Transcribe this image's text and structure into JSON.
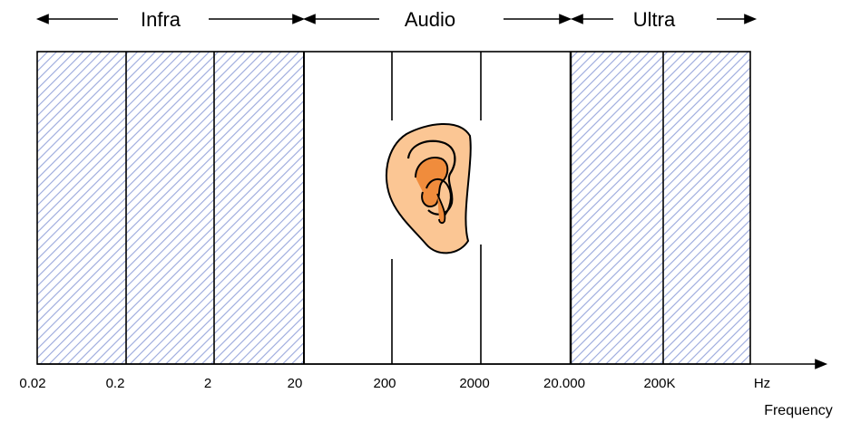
{
  "bands": [
    {
      "id": "infra",
      "label": "Infra",
      "hatched": true
    },
    {
      "id": "audio",
      "label": "Audio",
      "hatched": false
    },
    {
      "id": "ultra",
      "label": "Ultra",
      "hatched": true
    }
  ],
  "ticks": [
    "0.02",
    "0.2",
    "2",
    "20",
    "200",
    "2000",
    "20.000",
    "200K",
    "Hz"
  ],
  "axis": {
    "label": "Frequency"
  },
  "colors": {
    "hatch": "#9aa8dc",
    "line": "#000000",
    "ear_skin": "#fbc694",
    "ear_inner": "#f08c3c"
  },
  "icon": "ear-icon"
}
